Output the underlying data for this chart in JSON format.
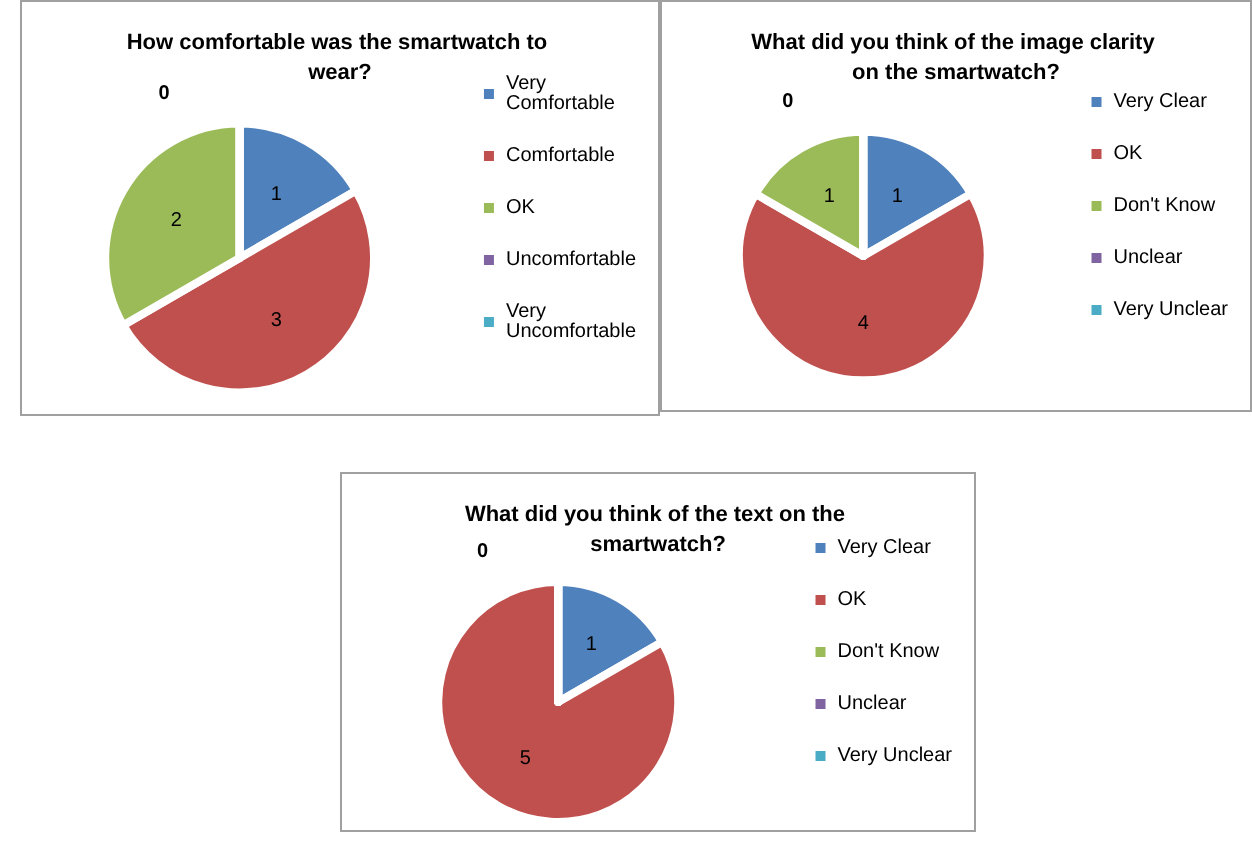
{
  "chart_data": [
    {
      "type": "pie",
      "title": "How comfortable was the smartwatch to wear?",
      "categories": [
        "Very Comfortable",
        "Comfortable",
        "OK",
        "Uncomfortable",
        "Very Uncomfortable"
      ],
      "values": [
        1,
        3,
        2,
        0,
        0
      ],
      "value_labels": [
        "1",
        "3",
        "2",
        "0",
        null
      ],
      "colors": [
        "#4f81bd",
        "#c0504d",
        "#9bbb59",
        "#8064a2",
        "#4bacc6"
      ],
      "legend": "right"
    },
    {
      "type": "pie",
      "title": "What did you think of the image clarity on the smartwatch?",
      "categories": [
        "Very Clear",
        "OK",
        "Don't Know",
        "Unclear",
        "Very Unclear"
      ],
      "values": [
        1,
        4,
        1,
        0,
        0
      ],
      "value_labels": [
        "1",
        "4",
        "1",
        "0",
        null
      ],
      "colors": [
        "#4f81bd",
        "#c0504d",
        "#9bbb59",
        "#8064a2",
        "#4bacc6"
      ],
      "legend": "right"
    },
    {
      "type": "pie",
      "title": "What did you think of the text on the smartwatch?",
      "categories": [
        "Very Clear",
        "OK",
        "Don't Know",
        "Unclear",
        "Very Unclear"
      ],
      "values": [
        1,
        5,
        0,
        0,
        0
      ],
      "value_labels": [
        "1",
        "5",
        "0",
        null,
        null
      ],
      "colors": [
        "#4f81bd",
        "#c0504d",
        "#9bbb59",
        "#8064a2",
        "#4bacc6"
      ],
      "legend": "right"
    }
  ]
}
